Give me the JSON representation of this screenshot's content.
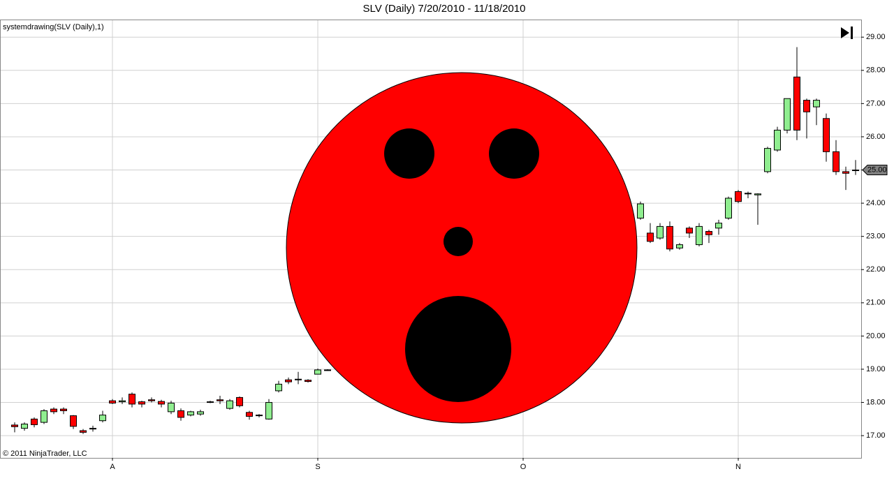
{
  "chart_data": {
    "type": "candlestick",
    "title": "SLV (Daily)  7/20/2010 - 11/18/2010",
    "indicator_label": "systemdrawing(SLV (Daily),1)",
    "copyright": "© 2011 NinjaTrader, LLC",
    "categories": [
      null,
      null,
      null,
      null,
      null,
      null,
      null,
      null,
      null,
      null,
      "A",
      null,
      null,
      null,
      null,
      null,
      null,
      null,
      null,
      null,
      null,
      null,
      null,
      null,
      null,
      null,
      null,
      null,
      null,
      null,
      null,
      "S",
      null,
      null,
      null,
      null,
      null,
      null,
      null,
      null,
      null,
      null,
      null,
      null,
      null,
      null,
      null,
      null,
      null,
      null,
      null,
      null,
      "O",
      null,
      null,
      null,
      null,
      null,
      null,
      null,
      null,
      null,
      null,
      null,
      null,
      null,
      null,
      null,
      null,
      null,
      null,
      null,
      null,
      null,
      "N",
      null,
      null,
      null,
      null,
      null,
      null,
      null,
      null,
      null,
      null,
      null,
      null
    ],
    "series": [
      {
        "name": "SLV (Daily)",
        "up_color": "#90ee90",
        "down_color": "#ff0000",
        "open": [
          17.32,
          17.22,
          17.5,
          17.4,
          17.8,
          17.8,
          17.6,
          17.15,
          17.22,
          17.45,
          18.05,
          18.02,
          18.25,
          18.02,
          18.08,
          18.03,
          17.72,
          17.75,
          17.62,
          17.65,
          18.02,
          18.08,
          17.82,
          18.15,
          17.7,
          17.6,
          17.5,
          18.35,
          18.68,
          18.7,
          18.67,
          18.85,
          18.98,
          null,
          null,
          null,
          null,
          null,
          null,
          null,
          null,
          null,
          null,
          null,
          null,
          null,
          null,
          null,
          null,
          null,
          null,
          null,
          null,
          null,
          null,
          null,
          null,
          null,
          null,
          null,
          null,
          null,
          null,
          null,
          23.55,
          23.1,
          22.95,
          23.3,
          22.65,
          23.25,
          22.75,
          23.15,
          23.25,
          23.55,
          24.35,
          24.3,
          24.25,
          24.95,
          25.6,
          26.2,
          27.8,
          27.1,
          26.9,
          26.55,
          25.55,
          24.95,
          25.0
        ],
        "high": [
          17.4,
          17.4,
          17.55,
          17.8,
          17.85,
          17.85,
          17.62,
          17.2,
          17.3,
          17.75,
          18.1,
          18.15,
          18.3,
          18.05,
          18.15,
          18.08,
          18.05,
          17.82,
          17.75,
          17.78,
          18.05,
          18.2,
          18.1,
          18.18,
          17.75,
          17.65,
          18.1,
          18.65,
          18.75,
          18.92,
          18.7,
          19.02,
          19.0,
          null,
          null,
          null,
          null,
          null,
          null,
          null,
          null,
          null,
          null,
          null,
          null,
          null,
          null,
          null,
          null,
          null,
          null,
          null,
          null,
          null,
          null,
          null,
          null,
          null,
          null,
          null,
          null,
          null,
          null,
          null,
          24.05,
          23.4,
          23.4,
          23.45,
          22.8,
          23.3,
          23.4,
          23.2,
          23.5,
          24.2,
          24.4,
          24.35,
          24.3,
          25.7,
          26.3,
          27.15,
          28.7,
          27.15,
          27.15,
          26.7,
          25.9,
          25.1,
          25.3
        ],
        "low": [
          17.1,
          17.15,
          17.25,
          17.35,
          17.65,
          17.65,
          17.2,
          17.05,
          17.12,
          17.4,
          17.95,
          17.95,
          17.85,
          17.85,
          18.0,
          17.85,
          17.65,
          17.45,
          17.58,
          17.6,
          17.98,
          17.95,
          17.78,
          17.85,
          17.48,
          17.55,
          17.48,
          18.3,
          18.55,
          18.55,
          18.6,
          18.85,
          18.95,
          null,
          null,
          null,
          null,
          null,
          null,
          null,
          null,
          null,
          null,
          null,
          null,
          null,
          null,
          null,
          null,
          null,
          null,
          null,
          null,
          null,
          null,
          null,
          null,
          null,
          null,
          null,
          null,
          null,
          null,
          null,
          23.5,
          22.8,
          22.9,
          22.55,
          22.6,
          22.95,
          22.7,
          22.8,
          23.05,
          23.5,
          24.0,
          24.15,
          23.35,
          24.9,
          25.55,
          26.1,
          25.9,
          25.95,
          26.35,
          25.25,
          24.85,
          24.4,
          24.85
        ],
        "close": [
          17.27,
          17.35,
          17.33,
          17.75,
          17.72,
          17.75,
          17.28,
          17.1,
          17.2,
          17.62,
          17.98,
          18.05,
          17.95,
          17.95,
          18.05,
          17.95,
          17.98,
          17.55,
          17.72,
          17.72,
          18.0,
          18.05,
          18.05,
          17.9,
          17.58,
          17.62,
          18.0,
          18.55,
          18.62,
          18.68,
          18.63,
          18.98,
          18.97,
          null,
          null,
          null,
          null,
          null,
          null,
          null,
          null,
          null,
          null,
          null,
          null,
          null,
          null,
          null,
          null,
          null,
          null,
          null,
          null,
          null,
          null,
          null,
          null,
          null,
          null,
          null,
          null,
          null,
          null,
          null,
          23.98,
          22.85,
          23.3,
          22.62,
          22.75,
          23.1,
          23.3,
          23.05,
          23.4,
          24.15,
          24.05,
          24.28,
          24.28,
          25.65,
          26.2,
          27.15,
          26.2,
          26.75,
          27.1,
          25.55,
          24.95,
          24.9,
          25.0
        ]
      }
    ],
    "ylim": [
      16.33,
      29.53
    ],
    "yticks": [
      {
        "value": 17,
        "label": "17.00"
      },
      {
        "value": 18,
        "label": "18.00"
      },
      {
        "value": 19,
        "label": "19.00"
      },
      {
        "value": 20,
        "label": "20.00"
      },
      {
        "value": 21,
        "label": "21.00"
      },
      {
        "value": 22,
        "label": "22.00"
      },
      {
        "value": 23,
        "label": "23.00"
      },
      {
        "value": 24,
        "label": "24.00"
      },
      {
        "value": 25,
        "label": "25.00"
      },
      {
        "value": 26,
        "label": "26.00"
      },
      {
        "value": 27,
        "label": "27.00"
      },
      {
        "value": 28,
        "label": "28.00"
      },
      {
        "value": 29,
        "label": "29.00"
      }
    ],
    "price_marker": {
      "value": 25,
      "label": "25.00"
    },
    "grid": true
  }
}
